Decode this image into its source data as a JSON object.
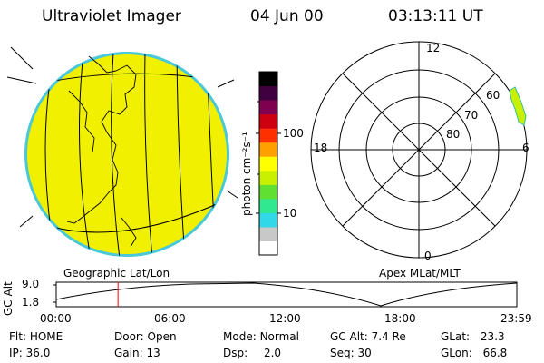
{
  "header": {
    "instrument": "Ultraviolet Imager",
    "date": "04 Jun 00",
    "time": "03:13:11 UT"
  },
  "left_panel": {
    "label": "Geographic Lat/Lon"
  },
  "right_panel": {
    "label": "Apex MLat/MLT",
    "mlt_labels": [
      "12",
      "18",
      "6",
      "0"
    ],
    "mlat_labels": [
      "60",
      "70",
      "80"
    ]
  },
  "colorbar": {
    "unit": "photon cm⁻²s⁻¹",
    "ticks": [
      "100",
      "10"
    ],
    "colors": [
      "#ffffff",
      "#c8c8c8",
      "#30d8e8",
      "#30e890",
      "#60e030",
      "#c8f000",
      "#ffff00",
      "#ffa000",
      "#ff3000",
      "#cc0010",
      "#800050",
      "#400040",
      "#000000"
    ]
  },
  "image_color": "#f0f000",
  "timeline": {
    "ylabel": "GC Alt",
    "yticks": [
      "9.0",
      "1.8"
    ],
    "xticks": [
      "00:00",
      "06:00",
      "12:00",
      "18:00",
      "23:59"
    ],
    "current_marker_hours": 3.22
  },
  "info": {
    "row1": [
      {
        "k": "Flt:",
        "v": "HOME"
      },
      {
        "k": "Door:",
        "v": "Open"
      },
      {
        "k": "Mode:",
        "v": "Normal"
      },
      {
        "k": "GC Alt:",
        "v": "7.4 Re"
      },
      {
        "k": "GLat:",
        "v": "23.3"
      }
    ],
    "row2": [
      {
        "k": "IP:",
        "v": "36.0"
      },
      {
        "k": "Gain:",
        "v": "13"
      },
      {
        "k": "Dsp:",
        "v": "2.0"
      },
      {
        "k": "Seq:",
        "v": "30"
      },
      {
        "k": "GLon:",
        "v": "66.8"
      }
    ]
  }
}
